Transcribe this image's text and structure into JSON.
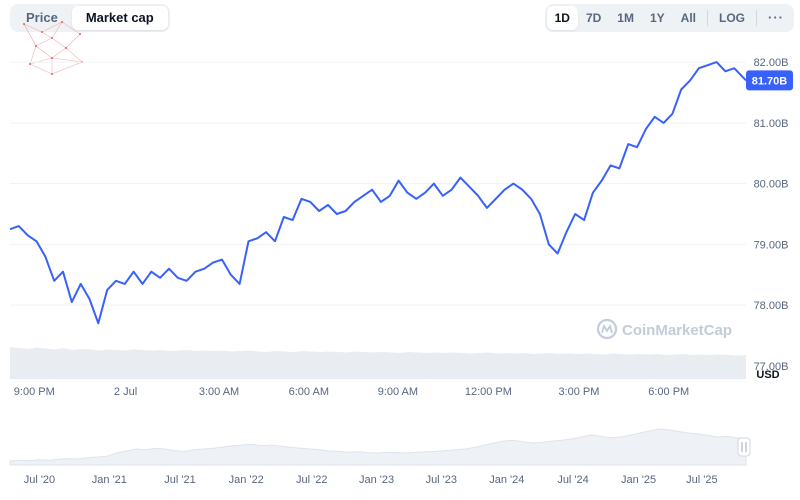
{
  "tabs": {
    "price": "Price",
    "market_cap": "Market cap"
  },
  "ranges": {
    "d1": "1D",
    "d7": "7D",
    "m1": "1M",
    "y1": "1Y",
    "all": "All",
    "log": "LOG",
    "more": "···"
  },
  "colors": {
    "line": "#3861fb",
    "badge": "#3861fb",
    "grid": "#eff2f5"
  },
  "watermark": "CoinMarketCap",
  "chart_data": {
    "type": "line",
    "ylabel": "USD",
    "ylim": [
      76.8,
      82.2
    ],
    "yticks": [
      {
        "value": 77.0,
        "label": "77.00B"
      },
      {
        "value": 78.0,
        "label": "78.00B"
      },
      {
        "value": 79.0,
        "label": "79.00B"
      },
      {
        "value": 80.0,
        "label": "80.00B"
      },
      {
        "value": 81.0,
        "label": "81.00B"
      },
      {
        "value": 82.0,
        "label": "82.00B"
      }
    ],
    "xlim": [
      0,
      1
    ],
    "xticks": [
      {
        "value": 0.033,
        "label": "9:00 PM"
      },
      {
        "value": 0.157,
        "label": "2 Jul"
      },
      {
        "value": 0.284,
        "label": "3:00 AM"
      },
      {
        "value": 0.406,
        "label": "6:00 AM"
      },
      {
        "value": 0.527,
        "label": "9:00 AM"
      },
      {
        "value": 0.65,
        "label": "12:00 PM"
      },
      {
        "value": 0.773,
        "label": "3:00 PM"
      },
      {
        "value": 0.895,
        "label": "6:00 PM"
      }
    ],
    "current_value_label": "81.70B",
    "current_value": 81.7,
    "series": [
      {
        "x": [
          0.0,
          0.012,
          0.024,
          0.036,
          0.048,
          0.06,
          0.072,
          0.084,
          0.096,
          0.108,
          0.12,
          0.132,
          0.144,
          0.156,
          0.168,
          0.18,
          0.192,
          0.204,
          0.216,
          0.228,
          0.24,
          0.252,
          0.264,
          0.276,
          0.288,
          0.3,
          0.312,
          0.324,
          0.336,
          0.348,
          0.36,
          0.372,
          0.384,
          0.396,
          0.408,
          0.42,
          0.432,
          0.444,
          0.456,
          0.468,
          0.48,
          0.492,
          0.504,
          0.516,
          0.528,
          0.54,
          0.552,
          0.564,
          0.576,
          0.588,
          0.6,
          0.612,
          0.624,
          0.636,
          0.648,
          0.66,
          0.672,
          0.684,
          0.696,
          0.708,
          0.72,
          0.732,
          0.744,
          0.756,
          0.768,
          0.78,
          0.792,
          0.804,
          0.816,
          0.828,
          0.84,
          0.852,
          0.864,
          0.876,
          0.888,
          0.9,
          0.912,
          0.924,
          0.936,
          0.948,
          0.96,
          0.972,
          0.984,
          1.0
        ],
        "values": [
          79.25,
          79.3,
          79.15,
          79.05,
          78.8,
          78.4,
          78.55,
          78.05,
          78.35,
          78.1,
          77.7,
          78.25,
          78.4,
          78.35,
          78.55,
          78.35,
          78.55,
          78.45,
          78.6,
          78.45,
          78.4,
          78.55,
          78.6,
          78.7,
          78.75,
          78.5,
          78.35,
          79.05,
          79.1,
          79.2,
          79.05,
          79.45,
          79.4,
          79.75,
          79.7,
          79.55,
          79.65,
          79.5,
          79.55,
          79.7,
          79.8,
          79.9,
          79.7,
          79.8,
          80.05,
          79.85,
          79.75,
          79.85,
          80.0,
          79.8,
          79.9,
          80.1,
          79.95,
          79.8,
          79.6,
          79.75,
          79.9,
          80.0,
          79.9,
          79.75,
          79.5,
          79.0,
          78.85,
          79.2,
          79.5,
          79.4,
          79.85,
          80.05,
          80.3,
          80.25,
          80.65,
          80.6,
          80.9,
          81.1,
          81.0,
          81.15,
          81.55,
          81.7,
          81.9,
          81.95,
          82.0,
          81.85,
          81.9,
          81.7
        ]
      }
    ],
    "volume": {
      "values": [
        0.62,
        0.6,
        0.58,
        0.61,
        0.59,
        0.57,
        0.6,
        0.56,
        0.58,
        0.57,
        0.55,
        0.57,
        0.56,
        0.55,
        0.57,
        0.56,
        0.55,
        0.56,
        0.54,
        0.55,
        0.56,
        0.54,
        0.55,
        0.54,
        0.55,
        0.53,
        0.54,
        0.55,
        0.53,
        0.52,
        0.54,
        0.53,
        0.52,
        0.54,
        0.53,
        0.52,
        0.53,
        0.52,
        0.51,
        0.53,
        0.52,
        0.51,
        0.52,
        0.51,
        0.5,
        0.52,
        0.51,
        0.5,
        0.51,
        0.5,
        0.51,
        0.5,
        0.49,
        0.5,
        0.51,
        0.49,
        0.5,
        0.49,
        0.5,
        0.48,
        0.49,
        0.5,
        0.48,
        0.49,
        0.48,
        0.49,
        0.48,
        0.47,
        0.49,
        0.48,
        0.47,
        0.48,
        0.47,
        0.48,
        0.46,
        0.47,
        0.48,
        0.46,
        0.47,
        0.46,
        0.47,
        0.46,
        0.45,
        0.46
      ]
    },
    "overview": {
      "xticks": [
        {
          "value": 0.04,
          "label": "Jul '20"
        },
        {
          "value": 0.135,
          "label": "Jan '21"
        },
        {
          "value": 0.231,
          "label": "Jul '21"
        },
        {
          "value": 0.321,
          "label": "Jan '22"
        },
        {
          "value": 0.41,
          "label": "Jul '22"
        },
        {
          "value": 0.498,
          "label": "Jan '23"
        },
        {
          "value": 0.586,
          "label": "Jul '23"
        },
        {
          "value": 0.675,
          "label": "Jan '24"
        },
        {
          "value": 0.765,
          "label": "Jul '24"
        },
        {
          "value": 0.854,
          "label": "Jan '25"
        },
        {
          "value": 0.94,
          "label": "Jul '25"
        }
      ],
      "values": [
        0.1,
        0.12,
        0.11,
        0.13,
        0.12,
        0.14,
        0.16,
        0.15,
        0.18,
        0.2,
        0.22,
        0.3,
        0.35,
        0.4,
        0.38,
        0.42,
        0.4,
        0.36,
        0.34,
        0.38,
        0.4,
        0.42,
        0.45,
        0.48,
        0.5,
        0.52,
        0.48,
        0.5,
        0.47,
        0.44,
        0.42,
        0.4,
        0.38,
        0.35,
        0.34,
        0.32,
        0.33,
        0.31,
        0.3,
        0.32,
        0.31,
        0.3,
        0.32,
        0.33,
        0.34,
        0.36,
        0.38,
        0.4,
        0.44,
        0.5,
        0.55,
        0.6,
        0.62,
        0.58,
        0.55,
        0.57,
        0.6,
        0.62,
        0.65,
        0.7,
        0.75,
        0.72,
        0.68,
        0.7,
        0.74,
        0.8,
        0.85,
        0.9,
        0.88,
        0.84,
        0.8,
        0.78,
        0.74,
        0.7,
        0.72,
        0.68,
        0.65
      ]
    }
  }
}
